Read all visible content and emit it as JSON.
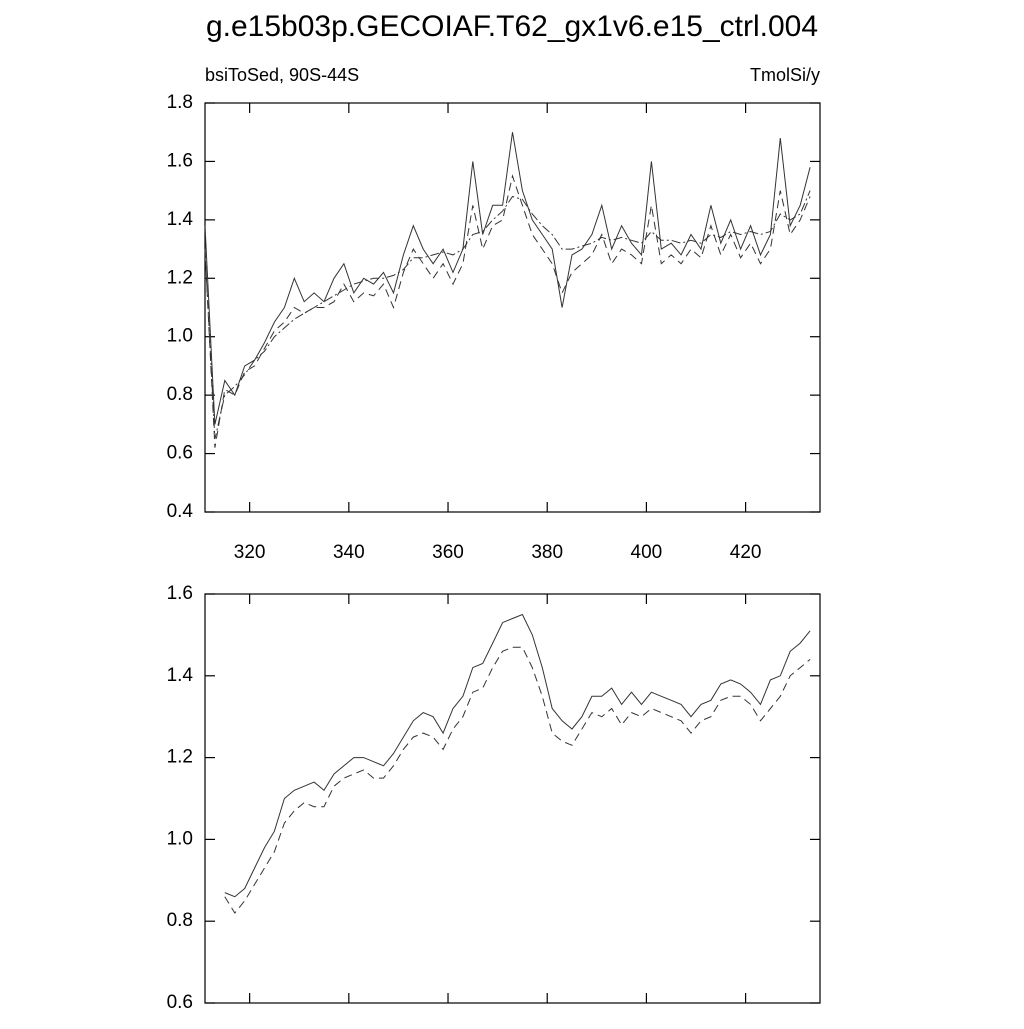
{
  "chart_data": [
    {
      "type": "line",
      "title": "g.e15b03p.GECOIAF.T62_gx1v6.e15_ctrl.004",
      "subtitle_left": "bsiToSed, 90S-44S",
      "subtitle_right": "TmolSi/y",
      "x": [
        311,
        313,
        315,
        317,
        319,
        321,
        323,
        325,
        327,
        329,
        331,
        333,
        335,
        337,
        339,
        341,
        343,
        345,
        347,
        349,
        351,
        353,
        355,
        357,
        359,
        361,
        363,
        365,
        367,
        369,
        371,
        373,
        375,
        377,
        379,
        381,
        383,
        385,
        387,
        389,
        391,
        393,
        395,
        397,
        399,
        401,
        403,
        405,
        407,
        409,
        411,
        413,
        415,
        417,
        419,
        421,
        423,
        425,
        427,
        429,
        431,
        433
      ],
      "series": [
        {
          "color": "#333333",
          "dash": "solid",
          "values": [
            1.38,
            0.7,
            0.85,
            0.8,
            0.9,
            0.92,
            0.98,
            1.05,
            1.1,
            1.2,
            1.12,
            1.15,
            1.12,
            1.2,
            1.25,
            1.15,
            1.2,
            1.18,
            1.22,
            1.15,
            1.28,
            1.38,
            1.3,
            1.25,
            1.3,
            1.22,
            1.3,
            1.6,
            1.35,
            1.45,
            1.45,
            1.7,
            1.5,
            1.4,
            1.35,
            1.3,
            1.1,
            1.28,
            1.3,
            1.35,
            1.45,
            1.3,
            1.38,
            1.32,
            1.28,
            1.6,
            1.3,
            1.32,
            1.28,
            1.35,
            1.3,
            1.45,
            1.32,
            1.4,
            1.3,
            1.38,
            1.28,
            1.35,
            1.68,
            1.38,
            1.45,
            1.58
          ]
        },
        {
          "color": "#333333",
          "dash": "dashed",
          "values": [
            1.3,
            0.62,
            0.82,
            0.8,
            0.88,
            0.9,
            0.96,
            1.02,
            1.05,
            1.1,
            1.08,
            1.1,
            1.1,
            1.12,
            1.18,
            1.12,
            1.15,
            1.14,
            1.18,
            1.1,
            1.22,
            1.3,
            1.25,
            1.2,
            1.25,
            1.18,
            1.25,
            1.45,
            1.3,
            1.38,
            1.4,
            1.55,
            1.45,
            1.35,
            1.3,
            1.25,
            1.15,
            1.22,
            1.25,
            1.28,
            1.35,
            1.25,
            1.3,
            1.28,
            1.25,
            1.45,
            1.25,
            1.28,
            1.25,
            1.3,
            1.27,
            1.38,
            1.28,
            1.35,
            1.27,
            1.32,
            1.25,
            1.3,
            1.5,
            1.35,
            1.4,
            1.48
          ]
        },
        {
          "color": "#333333",
          "dash": "dashdot",
          "values": [
            1.3,
            0.65,
            0.8,
            0.83,
            0.87,
            0.92,
            0.95,
            1.0,
            1.03,
            1.06,
            1.08,
            1.1,
            1.12,
            1.14,
            1.16,
            1.18,
            1.19,
            1.2,
            1.2,
            1.21,
            1.23,
            1.27,
            1.27,
            1.28,
            1.29,
            1.28,
            1.3,
            1.35,
            1.36,
            1.4,
            1.43,
            1.48,
            1.47,
            1.42,
            1.38,
            1.35,
            1.3,
            1.3,
            1.31,
            1.32,
            1.34,
            1.33,
            1.34,
            1.33,
            1.32,
            1.36,
            1.33,
            1.33,
            1.32,
            1.33,
            1.32,
            1.35,
            1.34,
            1.36,
            1.35,
            1.36,
            1.35,
            1.36,
            1.42,
            1.4,
            1.42,
            1.5
          ]
        }
      ],
      "xlim": [
        311,
        435
      ],
      "xticks": [
        320,
        340,
        360,
        380,
        400,
        420
      ],
      "show_xtick_labels": true,
      "ylim": [
        0.4,
        1.8
      ],
      "yticks": [
        0.4,
        0.6,
        0.8,
        {
          "value": 1.0,
          "label": "1.0"
        },
        1.2,
        1.4,
        1.6,
        1.8
      ]
    },
    {
      "type": "line",
      "x": [
        315,
        317,
        319,
        321,
        323,
        325,
        327,
        329,
        331,
        333,
        335,
        337,
        339,
        341,
        343,
        345,
        347,
        349,
        351,
        353,
        355,
        357,
        359,
        361,
        363,
        365,
        367,
        369,
        371,
        373,
        375,
        377,
        379,
        381,
        383,
        385,
        387,
        389,
        391,
        393,
        395,
        397,
        399,
        401,
        403,
        405,
        407,
        409,
        411,
        413,
        415,
        417,
        419,
        421,
        423,
        425,
        427,
        429,
        431,
        433
      ],
      "series": [
        {
          "color": "#333333",
          "dash": "solid",
          "values": [
            0.87,
            0.86,
            0.88,
            0.93,
            0.98,
            1.02,
            1.1,
            1.12,
            1.13,
            1.14,
            1.12,
            1.16,
            1.18,
            1.2,
            1.2,
            1.19,
            1.18,
            1.21,
            1.25,
            1.29,
            1.31,
            1.3,
            1.26,
            1.32,
            1.35,
            1.42,
            1.43,
            1.48,
            1.53,
            1.54,
            1.55,
            1.5,
            1.42,
            1.32,
            1.29,
            1.27,
            1.3,
            1.35,
            1.35,
            1.37,
            1.33,
            1.36,
            1.33,
            1.36,
            1.35,
            1.34,
            1.33,
            1.3,
            1.33,
            1.34,
            1.38,
            1.39,
            1.38,
            1.36,
            1.33,
            1.39,
            1.4,
            1.46,
            1.48,
            1.51
          ]
        },
        {
          "color": "#333333",
          "dash": "dashed",
          "values": [
            0.86,
            0.82,
            0.85,
            0.89,
            0.93,
            0.97,
            1.04,
            1.07,
            1.09,
            1.08,
            1.08,
            1.13,
            1.15,
            1.16,
            1.17,
            1.15,
            1.15,
            1.18,
            1.22,
            1.25,
            1.26,
            1.25,
            1.22,
            1.27,
            1.3,
            1.36,
            1.37,
            1.42,
            1.46,
            1.47,
            1.47,
            1.42,
            1.35,
            1.26,
            1.24,
            1.23,
            1.27,
            1.31,
            1.3,
            1.32,
            1.28,
            1.31,
            1.3,
            1.32,
            1.31,
            1.3,
            1.29,
            1.26,
            1.29,
            1.3,
            1.34,
            1.35,
            1.35,
            1.33,
            1.29,
            1.32,
            1.35,
            1.4,
            1.42,
            1.44
          ]
        }
      ],
      "xlim": [
        311,
        435
      ],
      "xticks": [
        320,
        340,
        360,
        380,
        400,
        420
      ],
      "show_xtick_labels": false,
      "ylim": [
        0.6,
        1.6
      ],
      "yticks": [
        0.6,
        0.8,
        {
          "value": 1.0,
          "label": "1.0"
        },
        1.2,
        1.4,
        1.6
      ]
    }
  ]
}
